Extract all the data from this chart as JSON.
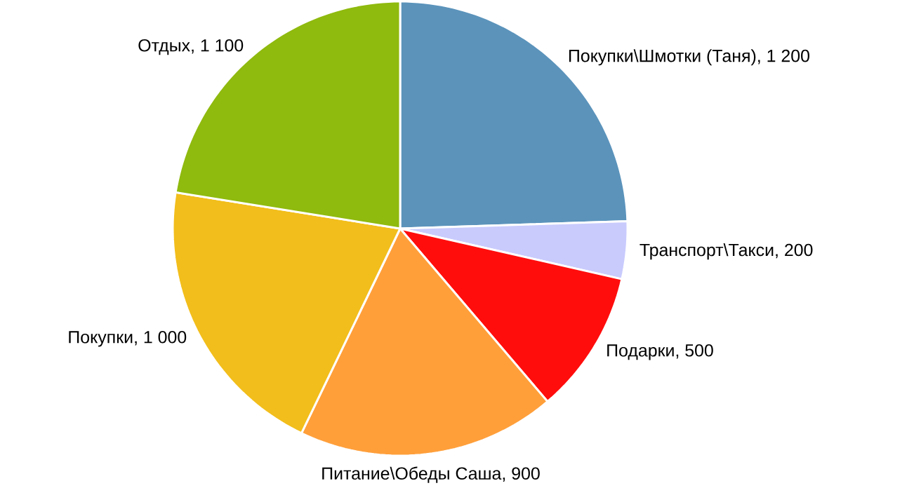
{
  "chart_data": {
    "type": "pie",
    "categories": [
      "Покупки\\Шмотки (Таня), 1 200",
      "Транспорт\\Такси, 200",
      "Подарки, 500",
      "Питание\\Обеды Саша, 900",
      "Покупки, 1 000",
      "Отдых, 1 100"
    ],
    "values": [
      1200,
      200,
      500,
      900,
      1000,
      1100
    ],
    "colors": [
      "#5b93bb",
      "#c9cbfd",
      "#ff0d0d",
      "#ff9f3a",
      "#f2be1b",
      "#8fba0e"
    ]
  }
}
